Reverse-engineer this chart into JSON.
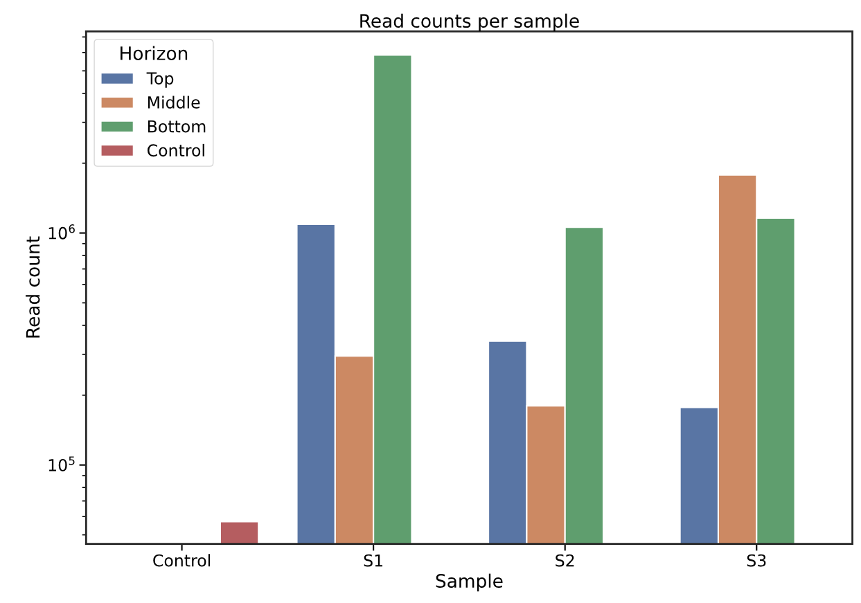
{
  "chart_data": {
    "type": "bar",
    "title": "Read counts per sample",
    "xlabel": "Sample",
    "ylabel": "Read count",
    "legend_title": "Horizon",
    "legend": "top left",
    "log": "y",
    "categories": [
      "Control",
      "S1",
      "S2",
      "S3"
    ],
    "series": [
      {
        "name": "Top",
        "color": "#5975a4",
        "values": [
          null,
          1090000,
          342000,
          177000
        ]
      },
      {
        "name": "Middle",
        "color": "#cc8963",
        "values": [
          null,
          295000,
          180000,
          1780000
        ]
      },
      {
        "name": "Bottom",
        "color": "#5f9e6e",
        "values": [
          null,
          5850000,
          1060000,
          1160000
        ]
      },
      {
        "name": "Control",
        "color": "#b55d60",
        "values": [
          57000,
          null,
          null,
          null
        ]
      }
    ],
    "ylim": [
      45700,
      7400000
    ],
    "yticks": [
      {
        "value": 100000,
        "label": "10$^{5}$"
      },
      {
        "value": 1000000,
        "label": "10$^{6}$"
      }
    ],
    "grid": false
  }
}
